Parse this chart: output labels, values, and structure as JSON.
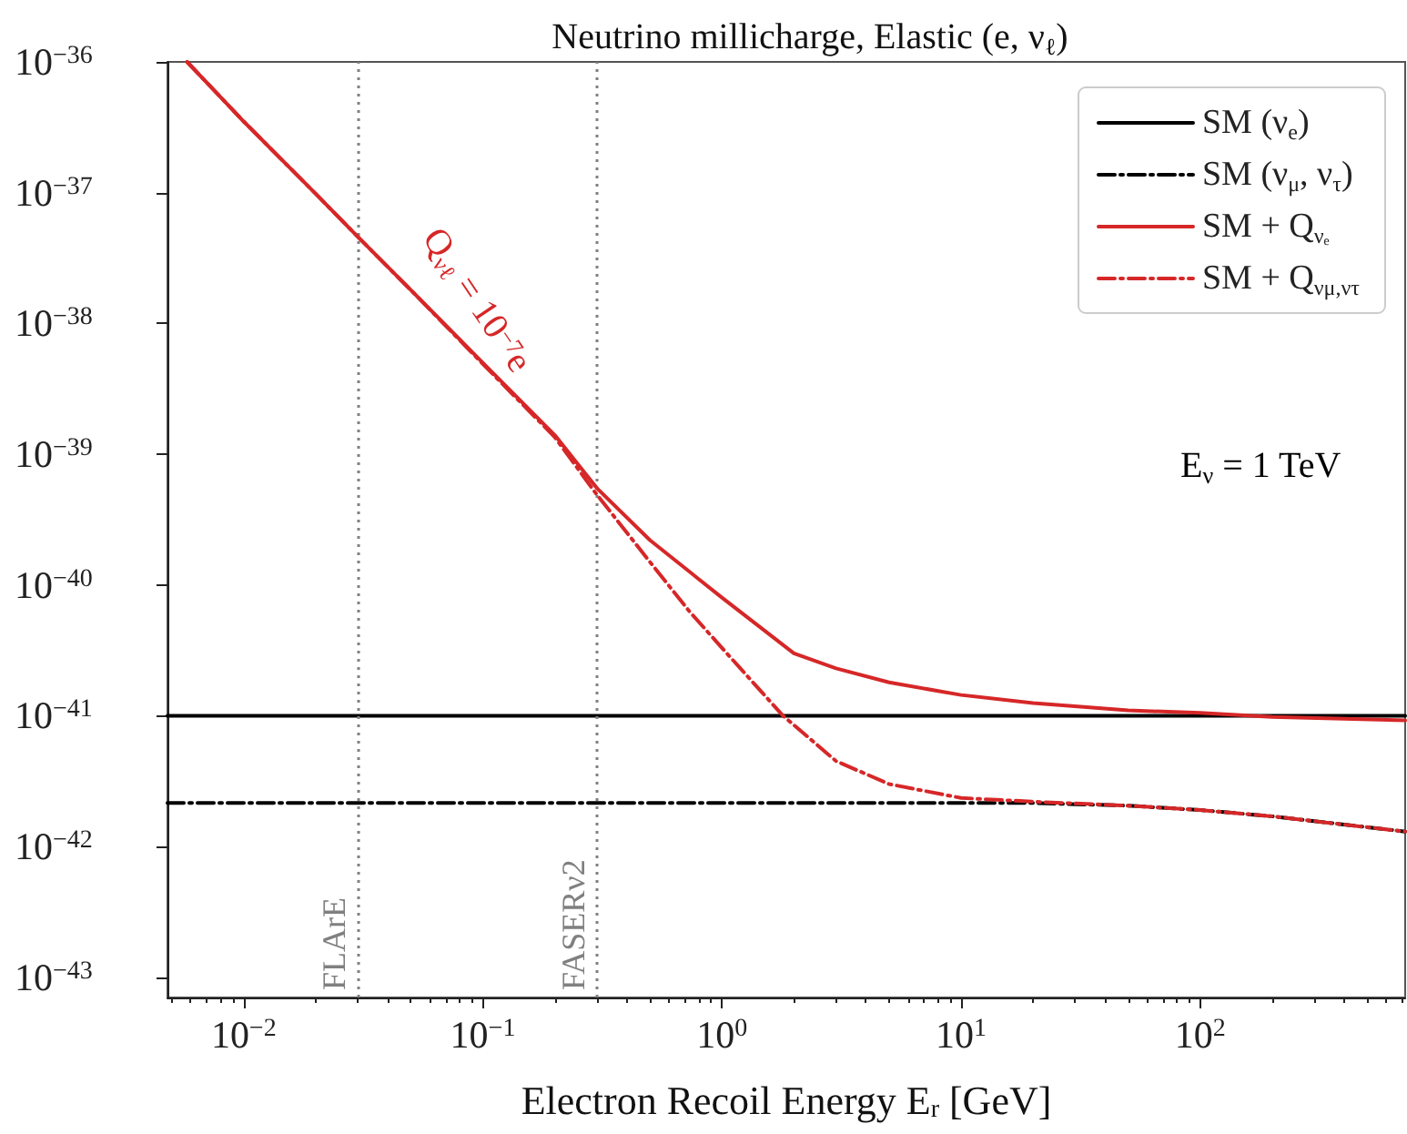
{
  "chart_data": {
    "type": "line",
    "title": "Neutrino millicharge, Elastic (e, ν$_{ℓ}$)",
    "xlabel": "Electron Recoil Energy E$_{r}$ [GeV]",
    "log": "xy",
    "grid": false,
    "legend": "top right",
    "marker": "none",
    "xlim": [
      0.0048,
      720
    ],
    "ylim": [
      7e-44,
      1e-36
    ],
    "xticks": [
      {
        "value": 0.01,
        "label": "10$^{−2}$"
      },
      {
        "value": 0.1,
        "label": "10$^{−1}$"
      },
      {
        "value": 1,
        "label": "10$^{0}$"
      },
      {
        "value": 10,
        "label": "10$^{1}$"
      },
      {
        "value": 100,
        "label": "10$^{2}$"
      }
    ],
    "yticks": [
      {
        "value": 1e-43,
        "label": "10$^{−43}$"
      },
      {
        "value": 1e-42,
        "label": "10$^{−42}$"
      },
      {
        "value": 1e-41,
        "label": "10$^{−41}$"
      },
      {
        "value": 1e-40,
        "label": "10$^{−40}$"
      },
      {
        "value": 1e-39,
        "label": "10$^{−39}$"
      },
      {
        "value": 1e-38,
        "label": "10$^{−38}$"
      },
      {
        "value": 1e-37,
        "label": "10$^{−37}$"
      },
      {
        "value": 1e-36,
        "label": "10$^{−36}$"
      }
    ],
    "series": [
      {
        "name": "SM (ν$_{e}$)",
        "color": "#000000",
        "line_style": "solid",
        "x": [
          0.0048,
          720
        ],
        "values": [
          1e-41,
          1e-41
        ]
      },
      {
        "name": "SM (ν$_{μ}$, ν$_{τ}$)",
        "color": "#000000",
        "line_style": "dashdot",
        "x": [
          0.0048,
          20,
          50,
          100,
          200,
          720
        ],
        "values": [
          2.15e-42,
          2.15e-42,
          2.05e-42,
          1.9e-42,
          1.7e-42,
          1.3e-42
        ]
      },
      {
        "name": "SM + Q$_{νₑ}$",
        "color": "#d62728",
        "line_style": "solid",
        "x": [
          0.0058,
          0.01,
          0.02,
          0.03,
          0.05,
          0.1,
          0.2,
          0.3,
          0.5,
          1,
          2,
          3,
          5,
          10,
          20,
          50,
          100,
          200,
          720
        ],
        "values": [
          1e-36,
          3.5e-37,
          9.8e-38,
          4.6e-38,
          1.8e-38,
          5e-39,
          1.4e-39,
          5.5e-40,
          2.2e-40,
          8e-41,
          3e-41,
          2.3e-41,
          1.8e-41,
          1.44e-41,
          1.25e-41,
          1.1e-41,
          1.05e-41,
          9.8e-42,
          9.2e-42
        ]
      },
      {
        "name": "SM + Q$_{νμ,ντ}$",
        "color": "#d62728",
        "line_style": "dashdot",
        "x": [
          0.0058,
          0.01,
          0.02,
          0.03,
          0.05,
          0.1,
          0.2,
          0.3,
          0.5,
          0.73,
          1,
          1.8,
          3,
          5,
          10,
          20,
          50,
          100,
          200,
          720
        ],
        "values": [
          1e-36,
          3.5e-37,
          9.8e-38,
          4.6e-38,
          1.8e-38,
          4.9e-39,
          1.35e-39,
          4.9e-40,
          1.5e-40,
          6.3e-41,
          3.3e-41,
          1e-41,
          4.5e-42,
          3e-42,
          2.35e-42,
          2.2e-42,
          2.05e-42,
          1.9e-42,
          1.7e-42,
          1.3e-42
        ]
      }
    ],
    "ref_lines": [
      {
        "axis": "x",
        "value": 0.03,
        "label": "FLArE",
        "color": "#808080",
        "line_style": "dotted"
      },
      {
        "axis": "x",
        "value": 0.3,
        "label": "FASERν2",
        "color": "#808080",
        "line_style": "dotted"
      }
    ],
    "annotations": [
      "Q$_{νℓ}$ = 10$^{−7}$e",
      "E$_{ν}$ = 1 TeV"
    ]
  }
}
